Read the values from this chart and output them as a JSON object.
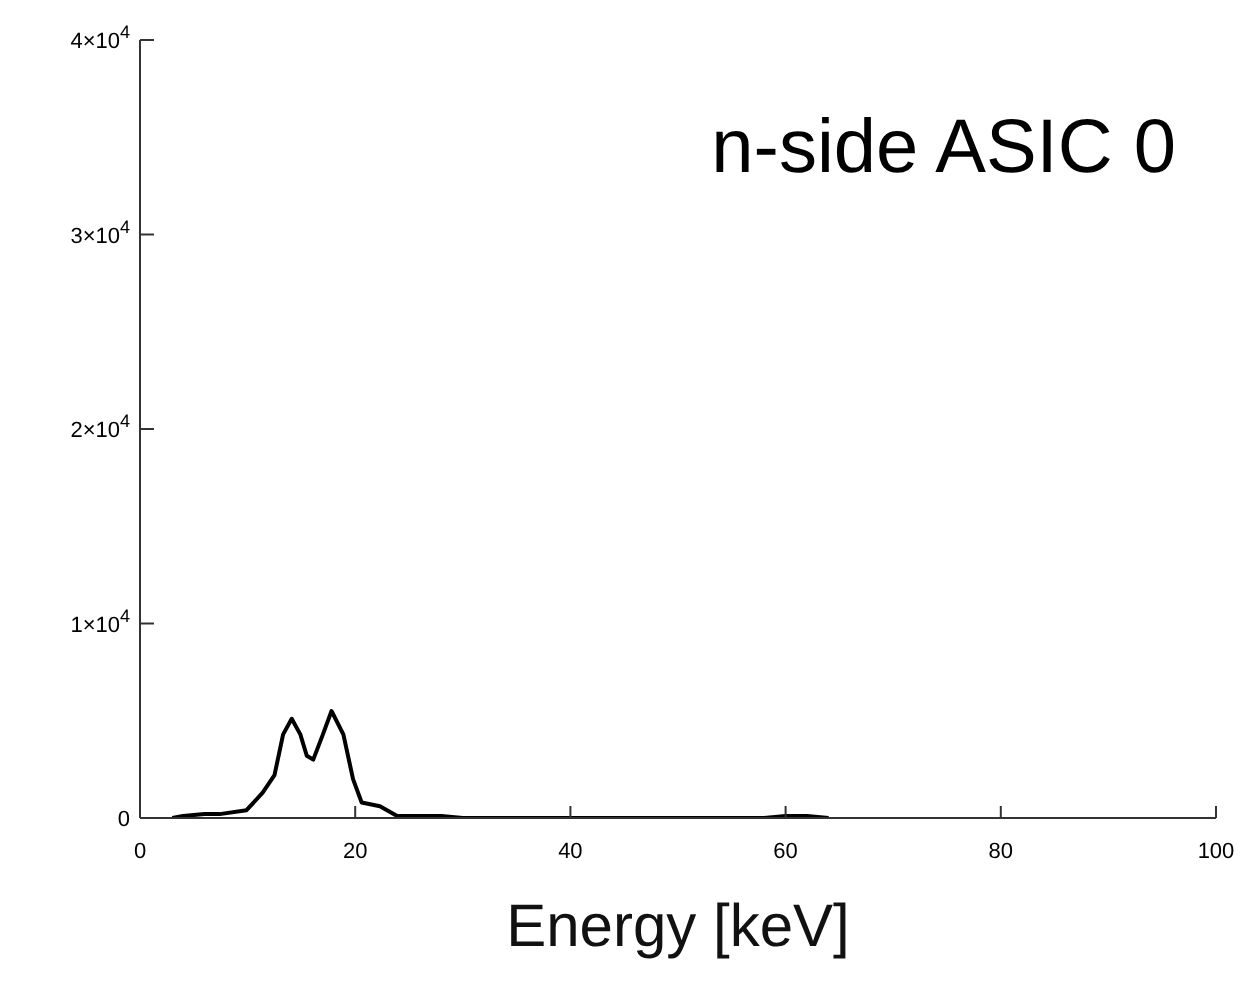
{
  "chart_data": {
    "type": "line",
    "xlabel": "Energy [keV]",
    "annotations": [
      "n-side ASIC 0"
    ],
    "x": [
      3,
      4,
      6,
      7.4,
      9.9,
      11.4,
      12.5,
      13.3,
      14.1,
      14.9,
      15.5,
      16.1,
      17,
      17.8,
      18.9,
      19.8,
      20.6,
      22.3,
      23.9,
      26,
      28,
      30,
      58,
      60,
      62,
      64
    ],
    "values": [
      0,
      100,
      200,
      200,
      400,
      1300,
      2200,
      4300,
      5100,
      4300,
      3200,
      3000,
      4300,
      5500,
      4300,
      2000,
      800,
      600,
      100,
      100,
      100,
      0,
      0,
      100,
      100,
      0
    ],
    "color": "#000000",
    "xlim": [
      0,
      100
    ],
    "xticks": [
      0,
      20,
      40,
      60,
      80,
      100
    ],
    "ylim": [
      0,
      40000
    ],
    "yticks": [
      0,
      {
        "value": 10000,
        "label": "1×10$^{4}$"
      },
      {
        "value": 20000,
        "label": "2×10$^{4}$"
      },
      {
        "value": 30000,
        "label": "3×10$^{4}$"
      },
      {
        "value": 40000,
        "label": "4×10$^{4}$"
      }
    ],
    "marker": "none",
    "line_style": "solid"
  }
}
